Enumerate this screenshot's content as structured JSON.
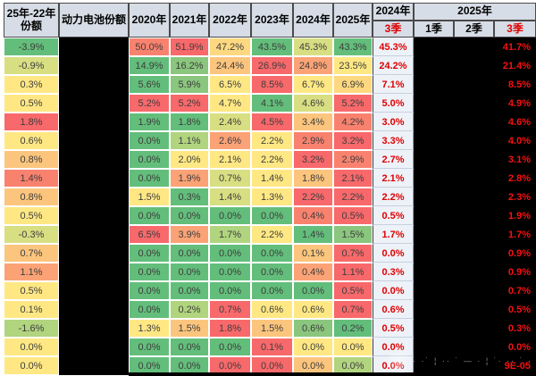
{
  "palette": {
    "R": "#f8696b",
    "O3": "#f9826f",
    "O2": "#fba376",
    "O1": "#fcc57d",
    "O0": "#fed880",
    "Y": "#ffe884",
    "G4": "#d8df82",
    "G3": "#b1d47f",
    "G2": "#8ac67d",
    "G": "#63be7b"
  },
  "colors": {
    "header_bg": "#d7dde6",
    "q3_2024_bg": "#edf2f9",
    "q3_red_text": "#e00000",
    "q3_2025_red_text": "#f51111",
    "redacted_black": "#000000",
    "cell_text": "#3d3d3d",
    "grid_white": "#ffffff"
  },
  "header": {
    "col_share_diff": "25年-22年份额",
    "col_battery_share": "动力电池份额",
    "years": [
      "2020年",
      "2021年",
      "2022年",
      "2023年",
      "2024年",
      "2025年"
    ],
    "q2024": {
      "label": "2024年",
      "sub": [
        "3季"
      ]
    },
    "q2025": {
      "label": "2025年",
      "sub": [
        "1季",
        "2季",
        "3季"
      ]
    }
  },
  "watermark": {
    "marks": "· ·˙ ¦ ·· ˙ — · ¦ ˙· ·· ˙ ·"
  },
  "chart_data": {
    "type": "heatmap",
    "columns": [
      "25年-22年份额",
      "动力电池份额",
      "2020年",
      "2021年",
      "2022年",
      "2023年",
      "2024年",
      "2025年",
      "2024年3季",
      "2025年1季",
      "2025年2季",
      "2025年3季"
    ],
    "redacted_columns": [
      "动力电池份额",
      "2025年1季",
      "2025年2季"
    ],
    "rows": [
      {
        "share": "-3.9%",
        "share_color": "G",
        "years": [
          [
            "50.0%",
            "O3"
          ],
          [
            "51.9%",
            "R"
          ],
          [
            "47.2%",
            "O0"
          ],
          [
            "43.5%",
            "G"
          ],
          [
            "45.3%",
            "G4"
          ],
          [
            "43.3%",
            "G"
          ]
        ],
        "q3_2024": "45.3%",
        "q3_2025": "41.7%"
      },
      {
        "share": "-0.9%",
        "share_color": "G4",
        "years": [
          [
            "14.9%",
            "G"
          ],
          [
            "16.2%",
            "G2"
          ],
          [
            "24.4%",
            "O1"
          ],
          [
            "26.9%",
            "R"
          ],
          [
            "24.8%",
            "O2"
          ],
          [
            "23.5%",
            "Y"
          ]
        ],
        "q3_2024": "24.2%",
        "q3_2025": "21.4%"
      },
      {
        "share": "0.3%",
        "share_color": "Y",
        "years": [
          [
            "5.6%",
            "G"
          ],
          [
            "5.9%",
            "G2"
          ],
          [
            "6.5%",
            "Y"
          ],
          [
            "8.5%",
            "R"
          ],
          [
            "6.7%",
            "Y"
          ],
          [
            "6.9%",
            "O0"
          ]
        ],
        "q3_2024": "7.1%",
        "q3_2025": "8.5%"
      },
      {
        "share": "0.5%",
        "share_color": "Y",
        "years": [
          [
            "5.2%",
            "R"
          ],
          [
            "5.2%",
            "R"
          ],
          [
            "4.7%",
            "Y"
          ],
          [
            "4.1%",
            "G"
          ],
          [
            "4.6%",
            "G4"
          ],
          [
            "5.2%",
            "R"
          ]
        ],
        "q3_2024": "5.0%",
        "q3_2025": "4.9%"
      },
      {
        "share": "1.8%",
        "share_color": "R",
        "years": [
          [
            "1.9%",
            "G"
          ],
          [
            "1.8%",
            "G"
          ],
          [
            "2.4%",
            "G4"
          ],
          [
            "4.5%",
            "R"
          ],
          [
            "3.4%",
            "O1"
          ],
          [
            "4.2%",
            "O3"
          ]
        ],
        "q3_2024": "3.0%",
        "q3_2025": "4.6%"
      },
      {
        "share": "0.6%",
        "share_color": "Y",
        "years": [
          [
            "0.0%",
            "G"
          ],
          [
            "1.1%",
            "G3"
          ],
          [
            "2.6%",
            "O2"
          ],
          [
            "2.2%",
            "Y"
          ],
          [
            "2.9%",
            "O3"
          ],
          [
            "3.2%",
            "R"
          ]
        ],
        "q3_2024": "3.3%",
        "q3_2025": "4.0%"
      },
      {
        "share": "0.8%",
        "share_color": "O1",
        "years": [
          [
            "0.0%",
            "G"
          ],
          [
            "2.0%",
            "Y"
          ],
          [
            "2.1%",
            "Y"
          ],
          [
            "2.2%",
            "Y"
          ],
          [
            "3.2%",
            "R"
          ],
          [
            "2.9%",
            "O3"
          ]
        ],
        "q3_2024": "2.7%",
        "q3_2025": "3.1%"
      },
      {
        "share": "1.4%",
        "share_color": "O3",
        "years": [
          [
            "0.0%",
            "G"
          ],
          [
            "1.9%",
            "O2"
          ],
          [
            "0.7%",
            "G4"
          ],
          [
            "1.4%",
            "Y"
          ],
          [
            "1.8%",
            "O1"
          ],
          [
            "2.1%",
            "R"
          ]
        ],
        "q3_2024": "2.1%",
        "q3_2025": "2.8%"
      },
      {
        "share": "0.8%",
        "share_color": "O1",
        "years": [
          [
            "1.5%",
            "Y"
          ],
          [
            "0.3%",
            "G"
          ],
          [
            "1.4%",
            "G4"
          ],
          [
            "1.3%",
            "Y"
          ],
          [
            "2.2%",
            "R"
          ],
          [
            "2.2%",
            "R"
          ]
        ],
        "q3_2024": "2.2%",
        "q3_2025": "2.3%"
      },
      {
        "share": "0.5%",
        "share_color": "Y",
        "years": [
          [
            "0.0%",
            "G"
          ],
          [
            "0.0%",
            "G"
          ],
          [
            "0.0%",
            "G"
          ],
          [
            "0.0%",
            "G"
          ],
          [
            "0.4%",
            "O3"
          ],
          [
            "0.5%",
            "R"
          ]
        ],
        "q3_2024": "0.5%",
        "q3_2025": "1.9%"
      },
      {
        "share": "-0.3%",
        "share_color": "G4",
        "years": [
          [
            "6.5%",
            "R"
          ],
          [
            "3.9%",
            "O2"
          ],
          [
            "1.7%",
            "G3"
          ],
          [
            "2.2%",
            "Y"
          ],
          [
            "1.4%",
            "G"
          ],
          [
            "1.5%",
            "G2"
          ]
        ],
        "q3_2024": "1.7%",
        "q3_2025": "1.7%"
      },
      {
        "share": "0.7%",
        "share_color": "O1",
        "years": [
          [
            "0.0%",
            "G"
          ],
          [
            "0.0%",
            "G"
          ],
          [
            "0.0%",
            "G"
          ],
          [
            "0.0%",
            "G"
          ],
          [
            "0.1%",
            "O1"
          ],
          [
            "0.7%",
            "R"
          ]
        ],
        "q3_2024": "0.0%",
        "q3_2025": "0.9%"
      },
      {
        "share": "1.1%",
        "share_color": "O2",
        "years": [
          [
            "0.0%",
            "G"
          ],
          [
            "0.0%",
            "G"
          ],
          [
            "0.0%",
            "G"
          ],
          [
            "0.0%",
            "G"
          ],
          [
            "0.4%",
            "O2"
          ],
          [
            "1.1%",
            "R"
          ]
        ],
        "q3_2024": "0.3%",
        "q3_2025": "0.9%"
      },
      {
        "share": "0.5%",
        "share_color": "Y",
        "years": [
          [
            "0.0%",
            "G"
          ],
          [
            "0.0%",
            "G"
          ],
          [
            "0.0%",
            "G"
          ],
          [
            "0.0%",
            "G"
          ],
          [
            "0.0%",
            "G"
          ],
          [
            "0.5%",
            "R"
          ]
        ],
        "q3_2024": "0.0%",
        "q3_2025": "0.7%"
      },
      {
        "share": "0.1%",
        "share_color": "Y",
        "years": [
          [
            "0.0%",
            "G"
          ],
          [
            "0.2%",
            "G3"
          ],
          [
            "0.7%",
            "R"
          ],
          [
            "0.6%",
            "Y"
          ],
          [
            "0.6%",
            "Y"
          ],
          [
            "0.7%",
            "R"
          ]
        ],
        "q3_2024": "0.6%",
        "q3_2025": "0.5%"
      },
      {
        "share": "-1.6%",
        "share_color": "G3",
        "years": [
          [
            "1.3%",
            "Y"
          ],
          [
            "1.5%",
            "O1"
          ],
          [
            "1.8%",
            "R"
          ],
          [
            "1.5%",
            "O1"
          ],
          [
            "0.6%",
            "G2"
          ],
          [
            "0.2%",
            "G"
          ]
        ],
        "q3_2024": "0.5%",
        "q3_2025": "0.3%"
      },
      {
        "share": "0.0%",
        "share_color": "Y",
        "years": [
          [
            "0.0%",
            "G"
          ],
          [
            "0.0%",
            "G"
          ],
          [
            "0.0%",
            "G"
          ],
          [
            "0.1%",
            "R"
          ],
          [
            "0.0%",
            "Y"
          ],
          [
            "0.0%",
            "Y"
          ]
        ],
        "q3_2024": "0.0%",
        "q3_2025": "0.0%"
      },
      {
        "share": "0.0%",
        "share_color": "Y",
        "years": [
          [
            "0.0%",
            "G"
          ],
          [
            "0.0%",
            "G"
          ],
          [
            "0.0%",
            "R"
          ],
          [
            "0.0%",
            "R"
          ],
          [
            "0.0%",
            "O1"
          ],
          [
            "0.0%",
            "G3"
          ]
        ],
        "q3_2024": "0.0%",
        "q3_2025": "9E-05"
      }
    ]
  }
}
